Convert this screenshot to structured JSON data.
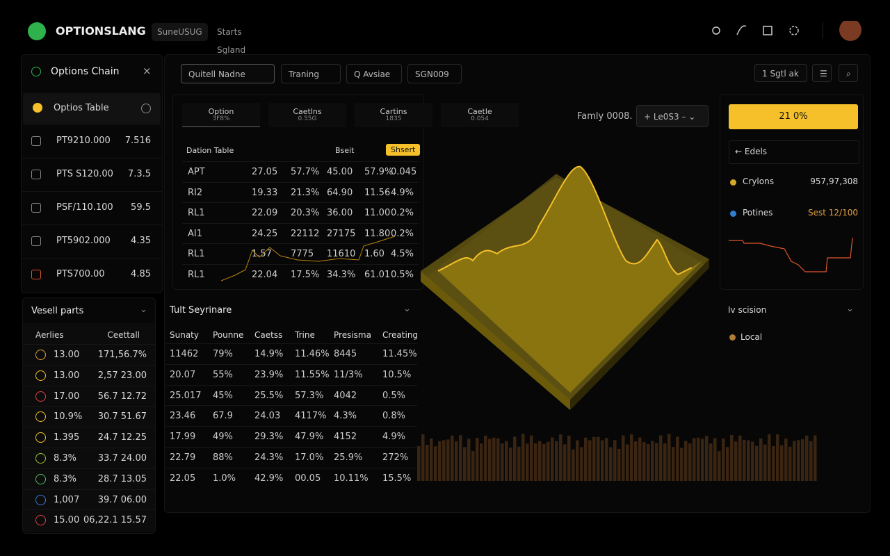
{
  "header": {
    "logo": "OPTIONSLANG",
    "tabs": [
      "SuneUSUG",
      "Starts Sgland"
    ]
  },
  "sidebar": {
    "title": "Options Chain",
    "active": "Optios Table",
    "items": [
      [
        "PT9210.000",
        "7.516"
      ],
      [
        "PTS S120.00",
        "7.3.5"
      ],
      [
        "PSF/110.100",
        "59.5"
      ],
      [
        "PT5902.000",
        "4.35"
      ],
      [
        "PTS700.00",
        "4.85"
      ]
    ]
  },
  "toolbar": {
    "search": "Quitell Nadne",
    "filters": [
      "Traning",
      "Q Avsiae",
      "SGN009"
    ],
    "right": "1 Sgtl ak"
  },
  "option_tabs": [
    {
      "title": "Option",
      "sub": "3F8%"
    },
    {
      "title": "Caetlns",
      "sub": "0.55G"
    },
    {
      "title": "Cartins",
      "sub": "1835"
    },
    {
      "title": "Caetle",
      "sub": "0.054"
    }
  ],
  "family": "Famly 0008.",
  "level": "Le0S3",
  "option_table": {
    "title": "Dation Table",
    "tabs": [
      "Bseit",
      "Shsert"
    ],
    "rows": [
      [
        "APT",
        "27.05",
        "57.7%",
        "45.00",
        "57.9%",
        "0.045"
      ],
      [
        "RI2",
        "19.33",
        "21.3%",
        "64.90",
        "11.56",
        "4.9%"
      ],
      [
        "RL1",
        "22.09",
        "20.3%",
        "36.00",
        "11.00",
        "0.2%"
      ],
      [
        "AI1",
        "24.25",
        "22112",
        "27175",
        "11.80",
        "0.2%"
      ],
      [
        "RL1",
        "1.57",
        "7775",
        "11610",
        "1.60",
        "4.5%"
      ],
      [
        "RL1",
        "22.04",
        "17.5%",
        "34.3%",
        "61.01",
        "0.5%"
      ]
    ]
  },
  "right_panel": {
    "button": "21 0%",
    "section": "Edels",
    "legend": [
      {
        "name": "Crylons",
        "value": "957,97,308"
      },
      {
        "name": "Potines",
        "value": "Sest 12/100"
      }
    ],
    "section2": "Iv scision",
    "item": "Local"
  },
  "vessel": {
    "title": "Vesell parts",
    "headers": [
      "Aerlies",
      "Ceettall"
    ],
    "rows": [
      [
        "13.00",
        "171,56.7%"
      ],
      [
        "13.00",
        "2,57 23.00"
      ],
      [
        "17.00",
        "56.7 12.72"
      ],
      [
        "10.9%",
        "30.7 51.67"
      ],
      [
        "1.395",
        "24.7 12.25"
      ],
      [
        "8.3%",
        "33.7 24.00"
      ],
      [
        "8.3%",
        "28.7 13.05"
      ],
      [
        "1,007",
        "39.7 06.00"
      ],
      [
        "15.00",
        "06,22.1 15.57"
      ]
    ]
  },
  "summary": {
    "title": "Tult Seyrinare",
    "headers": [
      "Sunaty",
      "Pounne",
      "Caetss",
      "Trine",
      "Presisma",
      "Creating"
    ],
    "rows": [
      [
        "11462",
        "79%",
        "14.9%",
        "11.46%",
        "8445",
        "11.45%"
      ],
      [
        "20.07",
        "55%",
        "23.9%",
        "11.55%",
        "11/3%",
        "10.5%"
      ],
      [
        "25.017",
        "45%",
        "25.5%",
        "57.3%",
        "4042",
        "0.5%"
      ],
      [
        "23.46",
        "67.9",
        "24.03",
        "4117%",
        "4.3%",
        "0.8%"
      ],
      [
        "17.99",
        "49%",
        "29.3%",
        "47.9%",
        "4152",
        "4.9%"
      ],
      [
        "22.79",
        "88%",
        "24.3%",
        "17.0%",
        "25.9%",
        "272%"
      ],
      [
        "22.05",
        "1.0%",
        "42.9%",
        "00.05",
        "10.11%",
        "15.5%"
      ]
    ]
  }
}
